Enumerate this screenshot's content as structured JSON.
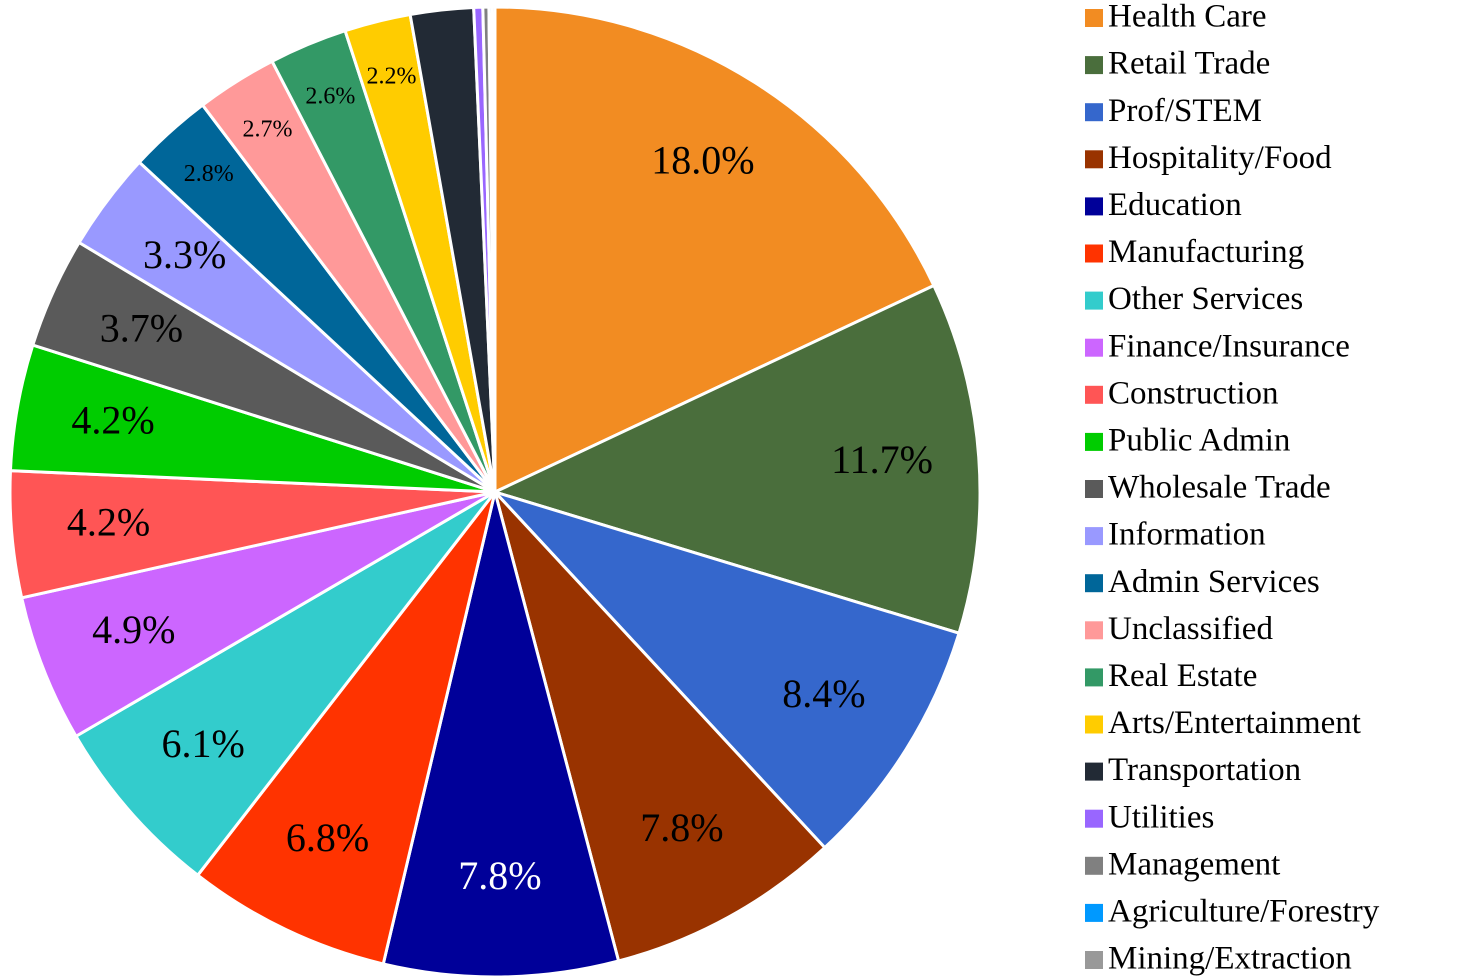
{
  "chart_data": {
    "type": "pie",
    "categories": [
      "Health Care",
      "Retail Trade",
      "Prof/STEM",
      "Hospitality/Food",
      "Education",
      "Manufacturing",
      "Other Services",
      "Finance/Insurance",
      "Construction",
      "Public Admin",
      "Wholesale Trade",
      "Information",
      "Admin Services",
      "Unclassified",
      "Real Estate",
      "Arts/Entertainment",
      "Transportation",
      "Utilities",
      "Management",
      "Agriculture/Forestry",
      "Mining/Extraction"
    ],
    "values": [
      18.0,
      11.7,
      8.4,
      7.8,
      7.8,
      6.8,
      6.1,
      4.9,
      4.2,
      4.2,
      3.7,
      3.3,
      2.8,
      2.7,
      2.6,
      2.2,
      2.1,
      0.3,
      0.2,
      0.1,
      0.1
    ],
    "value_labels": [
      "18.0%",
      "11.7%",
      "8.4%",
      "7.8%",
      "7.8%",
      "6.8%",
      "6.1%",
      "4.9%",
      "4.2%",
      "4.2%",
      "3.7%",
      "3.3%",
      "2.8%",
      "2.7%",
      "2.6%",
      "2.2%",
      null,
      null,
      null,
      null,
      null
    ],
    "colors": [
      "#f28c22",
      "#4a6e3c",
      "#3567cc",
      "#993300",
      "#000099",
      "#ff3300",
      "#33cccc",
      "#cc66ff",
      "#ff5555",
      "#00cc00",
      "#5a5a5a",
      "#9999ff",
      "#006699",
      "#ff9999",
      "#339966",
      "#ffcc00",
      "#222a35",
      "#9966ff",
      "#808080",
      "#0099ff",
      "#999999"
    ],
    "legend": "right"
  }
}
